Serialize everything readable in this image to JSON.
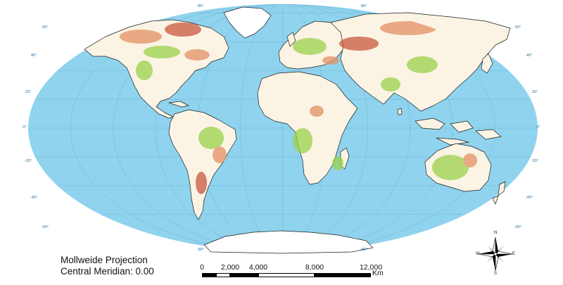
{
  "map": {
    "projection_name": "Mollweide Projection",
    "central_meridian": "Central Meridian: 0.00",
    "colors": {
      "ocean": "#8fd3ee",
      "land_base": "#fbf4e4",
      "green": "#9ad24a",
      "orange": "#e39165",
      "red": "#c9583f",
      "border": "#1a1a1a",
      "graticule": "#6eb6d3",
      "label": "#2a6fa0"
    },
    "graticule_labels": {
      "top": [
        "80°",
        "80°"
      ],
      "left": [
        "60°",
        "40°",
        "20°",
        "0°",
        "-20°",
        "-40°",
        "-60°"
      ],
      "right": [
        "60°",
        "40°",
        "20°",
        "0°",
        "-20°",
        "-40°",
        "-60°"
      ],
      "bottom": [
        "-80°",
        "-80°"
      ]
    },
    "scale_bar": {
      "ticks": [
        "0",
        "2,000",
        "4,000",
        "8,000",
        "12,000"
      ],
      "units": "Km"
    },
    "compass": {
      "north": "N",
      "south": "S",
      "east": "E",
      "west": "W"
    }
  }
}
